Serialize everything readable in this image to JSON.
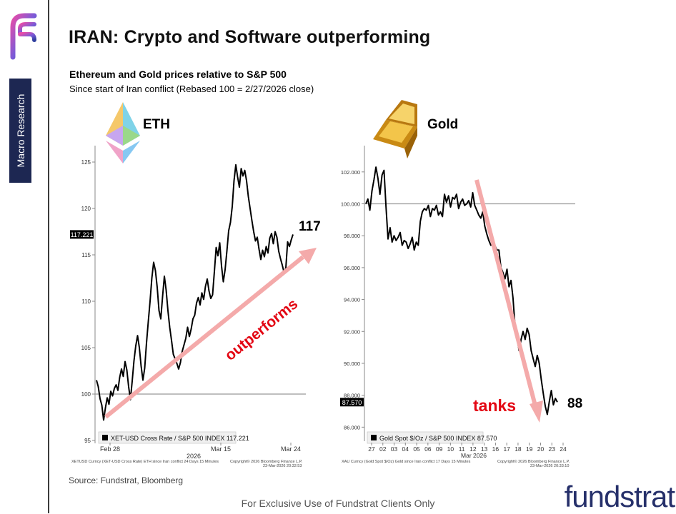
{
  "title": "IRAN: Crypto and Software outperforming",
  "sidebar_tag": "Macro Research",
  "subtitle": "Ethereum and Gold prices relative to S&P 500",
  "subtitle2": "Since start of Iran conflict (Rebased 100 = 2/27/2026 close)",
  "source": "Source: Fundstrat, Bloomberg",
  "footer": "For Exclusive Use of Fundstrat Clients Only",
  "brand": "fundstrat",
  "colors": {
    "arrow": "#f4aaaa",
    "annotation": "#e30613",
    "brand": "#26306a",
    "tag_bg": "#1d2752"
  },
  "chart_data": [
    {
      "type": "line",
      "label": "ETH",
      "ylim": [
        95,
        126
      ],
      "yticks": [
        "125",
        "120",
        "115",
        "110",
        "105",
        "100",
        "95"
      ],
      "ytick_values": [
        125,
        120,
        115,
        110,
        105,
        100,
        95
      ],
      "xticks": [
        "Feb 28",
        "Mar 15",
        "Mar 24"
      ],
      "xyear": "2026",
      "reference": 100,
      "last_value_badge": "117.221",
      "end_label": "117",
      "annotation": "outperforms",
      "legend": "XET-USD Cross Rate / S&P 500 INDEX 117.221",
      "footnote_left": "XETUSD Curncy (XET-USD Cross Rate) ETH since Iran conflict 24 Days 15 Minutes",
      "footnote_right": "Copyright© 2026 Bloomberg Finance L.P.",
      "footnote_right2": "23-Mar-2026 20:32:53",
      "series": [
        {
          "values": [
            101.5,
            100.8,
            99.5,
            98.8,
            97.2,
            98.5,
            99.6,
            98.9,
            100.3,
            99.8,
            100.6,
            101.0,
            100.4,
            101.8,
            102.7,
            101.9,
            103.5,
            102.6,
            100.8,
            99.4,
            101.4,
            103.6,
            105.2,
            106.3,
            105.0,
            103.0,
            101.5,
            102.8,
            105.5,
            107.8,
            110.0,
            112.5,
            114.2,
            113.3,
            111.5,
            109.0,
            108.1,
            110.5,
            112.7,
            111.2,
            109.0,
            107.2,
            105.8,
            104.3,
            103.8,
            103.3,
            102.7,
            103.4,
            104.6,
            105.3,
            106.0,
            107.2,
            106.2,
            107.0,
            108.1,
            108.5,
            109.8,
            110.4,
            109.6,
            110.9,
            110.2,
            111.6,
            112.4,
            111.1,
            110.3,
            110.7,
            113.2,
            115.8,
            114.9,
            116.3,
            113.8,
            112.1,
            113.4,
            115.4,
            117.6,
            118.5,
            120.2,
            123.0,
            124.7,
            123.4,
            122.3,
            124.3,
            123.5,
            124.1,
            123.0,
            121.3,
            120.0,
            118.7,
            117.5,
            116.5,
            116.9,
            115.6,
            114.5,
            115.5,
            114.8,
            115.9,
            115.2,
            116.8,
            117.3,
            116.2,
            117.5,
            116.9,
            115.4,
            114.6,
            113.9,
            113.1,
            113.6,
            116.4,
            115.9,
            116.6,
            117.2
          ]
        }
      ]
    },
    {
      "type": "line",
      "label": "Gold",
      "ylim": [
        85.3,
        103.2
      ],
      "yticks": [
        "102.000",
        "100.000",
        "98.000",
        "96.000",
        "94.000",
        "92.000",
        "90.000",
        "88.000",
        "86.000"
      ],
      "ytick_values": [
        102,
        100,
        98,
        96,
        94,
        92,
        90,
        88,
        86
      ],
      "xticks": [
        "27",
        "02",
        "03",
        "04",
        "05",
        "06",
        "09",
        "10",
        "11",
        "12",
        "13",
        "16",
        "17",
        "18",
        "19",
        "20",
        "23",
        "24"
      ],
      "xlabel": "Mar 2026",
      "reference": 100,
      "last_value_badge": "87.570",
      "end_label": "88",
      "annotation": "tanks",
      "legend": "Gold Spot $/Oz / S&P 500 INDEX 87.570",
      "footnote_left": "XAU Curncy (Gold Spot $/Oz) Gold since Iran conflict 17 Days 15 Minutes",
      "footnote_right": "Copyright© 2026 Bloomberg Finance L.P.",
      "footnote_right2": "23-Mar-2026 20:33:10",
      "series": [
        {
          "values": [
            100.0,
            100.3,
            99.6,
            100.8,
            101.5,
            102.3,
            101.6,
            100.6,
            101.8,
            102.1,
            99.8,
            97.8,
            98.5,
            97.6,
            98.0,
            97.7,
            97.9,
            98.2,
            97.4,
            97.7,
            97.6,
            97.2,
            97.5,
            97.9,
            97.1,
            97.6,
            97.4,
            98.9,
            99.5,
            99.7,
            99.6,
            99.9,
            99.2,
            99.7,
            99.6,
            99.9,
            99.3,
            99.5,
            99.2,
            100.6,
            100.1,
            100.5,
            99.8,
            100.4,
            100.3,
            100.6,
            99.7,
            100.1,
            100.3,
            99.9,
            100.0,
            100.2,
            99.8,
            100.7,
            99.9,
            99.6,
            99.3,
            99.1,
            99.5,
            98.6,
            98.1,
            97.7,
            97.4,
            97.5,
            97.4,
            97.1,
            97.1,
            96.0,
            95.7,
            95.3,
            95.9,
            94.8,
            95.2,
            94.1,
            92.3,
            91.6,
            90.8,
            91.5,
            92.0,
            91.5,
            92.2,
            91.8,
            90.8,
            90.3,
            89.8,
            90.5,
            90.0,
            89.0,
            88.1,
            87.3,
            86.8,
            87.6,
            88.3,
            87.4,
            87.8,
            87.57
          ]
        }
      ]
    }
  ]
}
